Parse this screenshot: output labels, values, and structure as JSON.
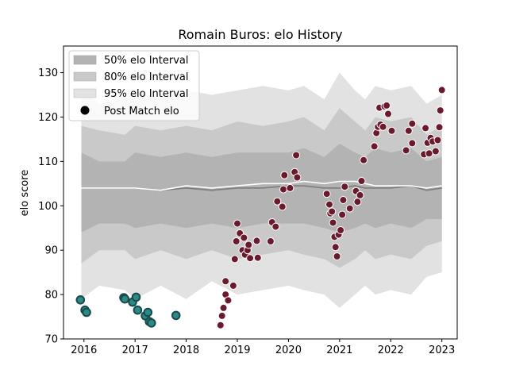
{
  "chart_data": {
    "type": "scatter",
    "title": "Romain Buros: elo History",
    "xlabel": "",
    "ylabel": "elo score",
    "xlim": [
      2015.6,
      2023.3
    ],
    "ylim": [
      70,
      136
    ],
    "x_ticks": [
      "2016",
      "2017",
      "2018",
      "2019",
      "2020",
      "2021",
      "2022",
      "2023"
    ],
    "y_ticks": [
      "70",
      "80",
      "90",
      "100",
      "110",
      "120",
      "130"
    ],
    "legend_position": "top-left",
    "legend": [
      {
        "label": "50% elo Interval",
        "color": "#b3b3b3"
      },
      {
        "label": "80% elo Interval",
        "color": "#c9c9c9"
      },
      {
        "label": "95% elo Interval",
        "color": "#e2e2e2"
      },
      {
        "label": "Post Match elo",
        "color": "#000000"
      }
    ],
    "colors": {
      "early_points": "#2a8a8a",
      "early_edge": "#1a4a4a",
      "late_points": "#6b1a2e",
      "band_50": "#b3b3b3",
      "band_80": "#c9c9c9",
      "band_95": "#e2e2e2",
      "mean_line": "#808080",
      "median_line": "#ffffff"
    },
    "bands": {
      "x": [
        2015.95,
        2016.3,
        2016.8,
        2017.0,
        2017.5,
        2018.0,
        2018.5,
        2019.0,
        2019.5,
        2020.0,
        2020.3,
        2020.7,
        2021.0,
        2021.3,
        2021.5,
        2021.7,
        2022.0,
        2022.4,
        2022.7,
        2023.0
      ],
      "q95_high": [
        126,
        123,
        124,
        126,
        124,
        126,
        125,
        126,
        127,
        126,
        127,
        124,
        130,
        126,
        124,
        127,
        126,
        127,
        123,
        125
      ],
      "q95_low": [
        79,
        82,
        81,
        79,
        82,
        79,
        83,
        80,
        81,
        82,
        81,
        80,
        77,
        80,
        82,
        80,
        81,
        80,
        84,
        85
      ],
      "q80_high": [
        118,
        117,
        116,
        118,
        117,
        118,
        117,
        119,
        118,
        119,
        120,
        117,
        122,
        119,
        117,
        120,
        119,
        120,
        116,
        118
      ],
      "q80_low": [
        87,
        90,
        90,
        88,
        90,
        88,
        90,
        88,
        89,
        90,
        89,
        88,
        86,
        88,
        90,
        88,
        89,
        88,
        91,
        92
      ],
      "q50_high": [
        112,
        110,
        110,
        112,
        111,
        112,
        111,
        112,
        112,
        112,
        113,
        111,
        114,
        112,
        111,
        113,
        112,
        113,
        110,
        111
      ],
      "q50_low": [
        94,
        96,
        96,
        95,
        96,
        95,
        96,
        95,
        96,
        96,
        96,
        95,
        94,
        95,
        96,
        95,
        96,
        95,
        97,
        97
      ],
      "mean": [
        104,
        104,
        104,
        104,
        103.5,
        104,
        103.5,
        104,
        104,
        104.5,
        104.5,
        104,
        104,
        104.5,
        104,
        104,
        104,
        104.5,
        103.5,
        104
      ],
      "median": [
        104,
        104,
        104,
        104,
        103.5,
        104.5,
        104,
        104.5,
        105,
        105,
        105.5,
        105,
        105.5,
        105.5,
        105,
        104.5,
        104.5,
        104.5,
        104,
        104.5
      ]
    },
    "series": [
      {
        "points": [
          [
            2015.93,
            78.8
          ],
          [
            2016.02,
            76.5
          ],
          [
            2016.05,
            76.0
          ],
          [
            2016.78,
            79.3
          ],
          [
            2016.8,
            79.0
          ],
          [
            2016.95,
            78.3
          ],
          [
            2017.02,
            79.4
          ],
          [
            2017.05,
            76.5
          ],
          [
            2017.2,
            75.2
          ],
          [
            2017.25,
            76.0
          ],
          [
            2017.28,
            73.9
          ],
          [
            2017.32,
            73.6
          ],
          [
            2017.8,
            75.3
          ]
        ]
      },
      {
        "points": [
          [
            2018.67,
            73.1
          ],
          [
            2018.7,
            75.2
          ],
          [
            2018.73,
            77.0
          ],
          [
            2018.77,
            80.0
          ],
          [
            2018.77,
            83.0
          ],
          [
            2018.82,
            78.7
          ],
          [
            2018.92,
            82.0
          ],
          [
            2018.95,
            88.0
          ],
          [
            2018.98,
            92.0
          ],
          [
            2019.0,
            96.0
          ],
          [
            2019.05,
            93.8
          ],
          [
            2019.1,
            90.0
          ],
          [
            2019.13,
            92.8
          ],
          [
            2019.15,
            89.0
          ],
          [
            2019.2,
            90.0
          ],
          [
            2019.22,
            91.2
          ],
          [
            2019.25,
            88.2
          ],
          [
            2019.38,
            92.1
          ],
          [
            2019.4,
            88.3
          ],
          [
            2019.65,
            92.0
          ],
          [
            2019.68,
            96.3
          ],
          [
            2019.75,
            95.3
          ],
          [
            2019.78,
            101.0
          ],
          [
            2019.88,
            99.8
          ],
          [
            2019.9,
            103.7
          ],
          [
            2019.92,
            106.9
          ],
          [
            2020.03,
            104.0
          ],
          [
            2020.12,
            107.6
          ],
          [
            2020.15,
            111.4
          ],
          [
            2020.17,
            106.4
          ],
          [
            2020.75,
            102.7
          ],
          [
            2020.8,
            100.3
          ],
          [
            2020.82,
            98.3
          ],
          [
            2020.85,
            98.7
          ],
          [
            2020.87,
            96.2
          ],
          [
            2020.9,
            93.0
          ],
          [
            2020.92,
            90.7
          ],
          [
            2020.95,
            88.6
          ],
          [
            2020.98,
            93.5
          ],
          [
            2021.02,
            94.5
          ],
          [
            2021.05,
            98.0
          ],
          [
            2021.07,
            101.3
          ],
          [
            2021.1,
            104.3
          ],
          [
            2021.2,
            99.4
          ],
          [
            2021.32,
            103.3
          ],
          [
            2021.35,
            100.9
          ],
          [
            2021.4,
            102.4
          ],
          [
            2021.43,
            105.6
          ],
          [
            2021.47,
            110.3
          ],
          [
            2021.68,
            113.4
          ],
          [
            2021.72,
            116.4
          ],
          [
            2021.75,
            117.8
          ],
          [
            2021.78,
            122.1
          ],
          [
            2021.8,
            118.3
          ],
          [
            2021.85,
            117.8
          ],
          [
            2021.88,
            122.4
          ],
          [
            2021.92,
            122.6
          ],
          [
            2021.95,
            120.7
          ],
          [
            2022.02,
            116.9
          ],
          [
            2022.3,
            112.5
          ],
          [
            2022.35,
            116.9
          ],
          [
            2022.42,
            114.1
          ],
          [
            2022.42,
            118.5
          ],
          [
            2022.65,
            111.6
          ],
          [
            2022.68,
            117.5
          ],
          [
            2022.72,
            114.2
          ],
          [
            2022.75,
            111.8
          ],
          [
            2022.78,
            115.3
          ],
          [
            2022.82,
            114.5
          ],
          [
            2022.88,
            112.3
          ],
          [
            2022.92,
            114.8
          ],
          [
            2022.95,
            117.7
          ],
          [
            2022.97,
            121.5
          ],
          [
            2023.0,
            126.1
          ]
        ]
      }
    ]
  }
}
